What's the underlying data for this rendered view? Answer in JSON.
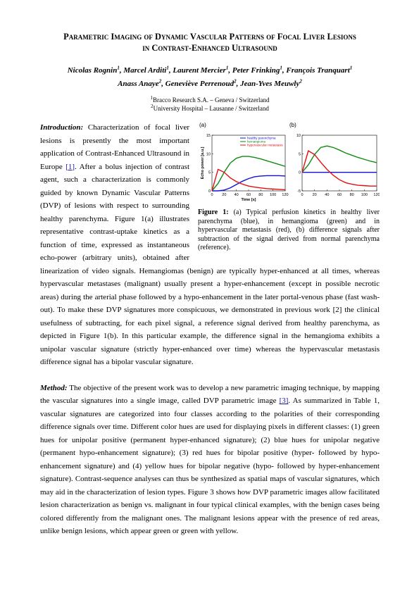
{
  "header": {
    "title": "Parametric Imaging of Dynamic Vascular Patterns of Focal Liver Lesions in Contrast-Enhanced Ultrasound",
    "authors": [
      [
        {
          "name": "Nicolas Rognin",
          "aff": "1"
        },
        {
          "name": "Marcel Arditi",
          "aff": "1"
        },
        {
          "name": "Laurent Mercier",
          "aff": "1"
        },
        {
          "name": "Peter Frinking",
          "aff": "1"
        },
        {
          "name": "François Tranquart",
          "aff": "1"
        }
      ],
      [
        {
          "name": "Anass Anaye",
          "aff": "2"
        },
        {
          "name": "Geneviève Perrenoud",
          "aff": "2"
        },
        {
          "name": "Jean-Yves Meuwly",
          "aff": "2"
        }
      ]
    ],
    "affiliations": [
      {
        "num": "1",
        "text": "Bracco Research S.A. – Geneva / Switzerland"
      },
      {
        "num": "2",
        "text": "University Hospital – Lausanne / Switzerland"
      }
    ]
  },
  "introduction": {
    "label": "Introduction:",
    "parts": [
      " Characterization of focal liver lesions is presently the most important application of Contrast-Enhanced Ultrasound in Europe ",
      "[1]",
      ". After a bolus injection of contrast agent, such a characterization is commonly guided by known Dynamic Vascular Patterns (DVP) of lesions with respect to surrounding healthy parenchyma. Figure 1(a) illustrates representative contrast-uptake kinetics as a function of time, expressed as instantaneous echo-power (arbitrary units), obtained after linearization of video signals. Hemangiomas (benign) are typically hyper-enhanced at all times, whereas hypervascular metastases (malignant) usually present a hyper-enhancement (except in possible necrotic areas) during the arterial phase followed by a hypo-enhancement in the later portal-venous phase (fast wash-out). To make these DVP signatures more conspicuous, we demonstrated in previous work [2] the clinical usefulness of subtracting, for each pixel signal, a reference signal derived from healthy parenchyma, as depicted in Figure 1(b). In this particular example, the difference signal in the hemangioma exhibits a unipolar vascular signature (strictly hyper-enhanced over time) whereas the hypervascular metastasis difference signal has a bipolar vascular signature."
    ]
  },
  "method": {
    "label": "Method:",
    "parts": [
      " The objective of the present work was to develop a new parametric imaging technique, by mapping the vascular signatures into a single image, called DVP parametric image ",
      "[3]",
      ". As summarized in Table 1, vascular signatures are categorized into four classes according to the polarities of their corresponding difference signals over time. Different color hues are used for displaying pixels in different classes: (1) green hues for unipolar positive (permanent hyper-enhanced signature); (2) blue hues for unipolar negative (permanent hypo-enhancement signature); (3) red hues for bipolar positive (hyper- followed by hypo-enhancement signature) and (4) yellow hues for bipolar negative (hypo- followed by hyper-enhancement signature). Contrast-sequence analyses can thus be synthesized as spatial maps of vascular signatures, which may aid in the characterization of lesion types. Figure 3 shows how DVP parametric images allow facilitated lesion characterization as benign vs. malignant in four typical clinical examples, with the benign cases being colored differently from the malignant ones. The malignant lesions appear with the presence of red areas, unlike benign lesions, which appear green or green with yellow."
    ]
  },
  "figure": {
    "label": "Figure 1:",
    "caption": " (a) Typical perfusion kinetics in healthy liver parenchyma (blue), in hemangioma (green) and in hypervascular metastasis (red), (b) difference signals after subtraction of the signal derived from normal parenchyma (reference)."
  },
  "chart_data": [
    {
      "type": "line",
      "panel": "(a)",
      "x_label": "Time [s]",
      "y_label": "Echo power [a.u.]",
      "x": [
        0,
        10,
        20,
        30,
        40,
        50,
        60,
        70,
        80,
        90,
        100,
        110,
        120
      ],
      "series": [
        {
          "name": "healthy parenchyma",
          "color": "#1010e0",
          "values": [
            0,
            0,
            0.2,
            0.8,
            1.7,
            2.6,
            3.3,
            3.8,
            4,
            4.1,
            4.1,
            4.1,
            4
          ]
        },
        {
          "name": "hemangioma",
          "color": "#118a11",
          "values": [
            0,
            2,
            5,
            7.5,
            8.8,
            9.3,
            9.3,
            9,
            8.6,
            8.1,
            7.6,
            7.1,
            6.6
          ]
        },
        {
          "name": "hypervascular metastasis",
          "color": "#e01010",
          "values": [
            0,
            5.8,
            5,
            3.5,
            2.5,
            1.8,
            1.3,
            1,
            0.8,
            0.6,
            0.5,
            0.4,
            0.3
          ]
        }
      ],
      "xlim": [
        0,
        120
      ],
      "xticks": [
        0,
        20,
        40,
        60,
        80,
        100,
        120
      ],
      "ylim": [
        0,
        15
      ],
      "yticks": [
        0,
        5,
        10,
        15
      ],
      "legend": "upper right"
    },
    {
      "type": "line",
      "panel": "(b)",
      "x": [
        0,
        10,
        20,
        30,
        40,
        50,
        60,
        70,
        80,
        90,
        100,
        110,
        120
      ],
      "series": [
        {
          "color": "#1010e0",
          "values": [
            0,
            0,
            0,
            0,
            0,
            0,
            0,
            0,
            0,
            0,
            0,
            0,
            0
          ]
        },
        {
          "color": "#118a11",
          "values": [
            0,
            2,
            4.8,
            6.7,
            7.1,
            6.7,
            6,
            5.2,
            4.6,
            4,
            3.5,
            3,
            2.6
          ]
        },
        {
          "color": "#e01010",
          "values": [
            0,
            5.8,
            4.8,
            2.7,
            0.8,
            -0.8,
            -2,
            -2.8,
            -3.2,
            -3.5,
            -3.6,
            -3.7,
            -3.7
          ]
        }
      ],
      "xlim": [
        0,
        120
      ],
      "xticks": [
        0,
        20,
        40,
        60,
        80,
        100,
        120
      ],
      "ylim": [
        -5,
        10
      ],
      "yticks": [
        -5,
        0,
        5,
        10
      ]
    }
  ]
}
